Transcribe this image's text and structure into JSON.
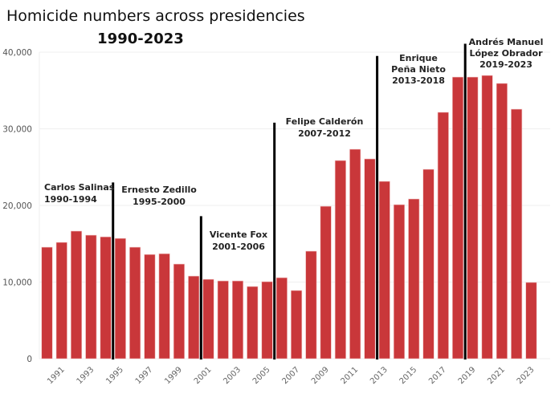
{
  "chart_data": {
    "type": "bar",
    "title": "Homicide numbers across presidencies",
    "subtitle": "1990-2023",
    "xlabel": "",
    "ylabel": "",
    "ylim": [
      0,
      40000
    ],
    "yticks": [
      0,
      10000,
      20000,
      30000,
      40000
    ],
    "ytick_labels": [
      "0",
      "10,000",
      "20,000",
      "30,000",
      "40,000"
    ],
    "grid": true,
    "bar_color": "#c9373a",
    "categories": [
      1990,
      1991,
      1992,
      1993,
      1994,
      1995,
      1996,
      1997,
      1998,
      1999,
      2000,
      2001,
      2002,
      2003,
      2004,
      2005,
      2006,
      2007,
      2008,
      2009,
      2010,
      2011,
      2012,
      2013,
      2014,
      2015,
      2016,
      2017,
      2018,
      2019,
      2020,
      2021,
      2022,
      2023
    ],
    "xtick_labels": [
      "1991",
      "1993",
      "1995",
      "1997",
      "1999",
      "2001",
      "2003",
      "2005",
      "2007",
      "2009",
      "2011",
      "2013",
      "2015",
      "2017",
      "2019",
      "2021",
      "2023"
    ],
    "values": [
      14550,
      15180,
      16650,
      16120,
      15900,
      15700,
      14550,
      13600,
      13700,
      12350,
      10780,
      10360,
      10150,
      10150,
      9420,
      10050,
      10570,
      8900,
      14030,
      19890,
      25860,
      27330,
      26070,
      23140,
      20100,
      20840,
      24710,
      32150,
      36750,
      36750,
      36960,
      35920,
      32560,
      9950
    ],
    "dividers": [
      {
        "between": [
          1994,
          1995
        ],
        "height": 23000
      },
      {
        "between": [
          2000,
          2001
        ],
        "height": 18600
      },
      {
        "between": [
          2005,
          2006
        ],
        "height": 30800
      },
      {
        "between": [
          2012,
          2013
        ],
        "height": 39500
      },
      {
        "between": [
          2018,
          2019
        ],
        "height": 41100
      }
    ],
    "annotations": [
      {
        "lines": [
          "Carlos Salinas",
          "1990-1994"
        ]
      },
      {
        "lines": [
          "Ernesto Zedillo",
          "1995-2000"
        ]
      },
      {
        "lines": [
          "Vicente Fox",
          "2001-2006"
        ]
      },
      {
        "lines": [
          "Felipe Calderón",
          "2007-2012"
        ]
      },
      {
        "lines": [
          "Enrique",
          "Peña Nieto",
          "2013-2018"
        ]
      },
      {
        "lines": [
          "Andrés Manuel",
          "López Obrador",
          "2019-2023"
        ]
      }
    ]
  }
}
